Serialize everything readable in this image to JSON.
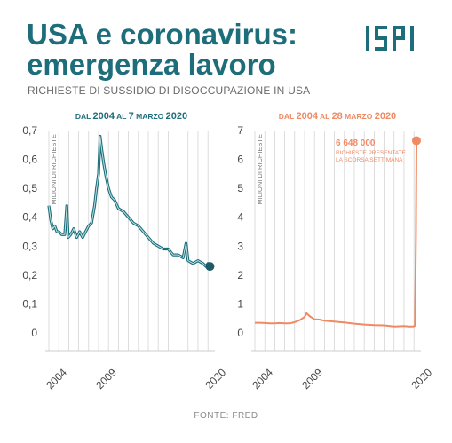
{
  "header": {
    "title_line1": "USA e coronavirus:",
    "title_line2": "emergenza lavoro",
    "subtitle": "RICHIESTE DI SUSSIDIO DI DISOCCUPAZIONE IN USA"
  },
  "logo": {
    "text": "ISPI"
  },
  "source": "FONTE: FRED",
  "colors": {
    "title": "#1d6e7a",
    "left_line": "#1d6e7a",
    "right_line": "#f08a63",
    "grid": "#cfcfcf"
  },
  "chart_data": [
    {
      "type": "line",
      "title_parts": [
        "DAL ",
        "2004",
        " AL ",
        "7",
        " MARZO ",
        "2020"
      ],
      "ylabel": "MILIONI DI RICHIESTE",
      "ylim": [
        0,
        0.7
      ],
      "xlim": [
        2004,
        2020.7
      ],
      "yticks": [
        0,
        0.1,
        0.2,
        0.3,
        0.4,
        0.5,
        0.6,
        0.7
      ],
      "ytick_labels": [
        "0",
        "0,1",
        "0,2",
        "0,3",
        "0,4",
        "0,5",
        "0,6",
        "0,7"
      ],
      "xticks": [
        2004,
        2009,
        2020
      ],
      "xtick_labels": [
        "2004",
        "2009",
        "2020"
      ],
      "series": [
        {
          "x": [
            2004.0,
            2004.2,
            2004.4,
            2004.6,
            2004.8,
            2005.0,
            2005.3,
            2005.6,
            2005.8,
            2005.95,
            2006.2,
            2006.5,
            2006.8,
            2007.1,
            2007.4,
            2007.7,
            2008.0,
            2008.3,
            2008.6,
            2008.8,
            2009.0,
            2009.15,
            2009.3,
            2009.5,
            2009.7,
            2010.0,
            2010.3,
            2010.6,
            2011.0,
            2011.5,
            2012.0,
            2012.5,
            2013.0,
            2013.5,
            2014.0,
            2014.5,
            2015.0,
            2015.5,
            2016.0,
            2016.5,
            2017.0,
            2017.5,
            2017.8,
            2018.0,
            2018.5,
            2019.0,
            2019.5,
            2019.8,
            2020.0,
            2020.2
          ],
          "y": [
            0.44,
            0.39,
            0.36,
            0.37,
            0.35,
            0.35,
            0.34,
            0.34,
            0.44,
            0.33,
            0.34,
            0.36,
            0.33,
            0.35,
            0.33,
            0.35,
            0.37,
            0.38,
            0.44,
            0.5,
            0.55,
            0.68,
            0.64,
            0.59,
            0.55,
            0.5,
            0.47,
            0.46,
            0.43,
            0.42,
            0.4,
            0.38,
            0.37,
            0.35,
            0.33,
            0.31,
            0.3,
            0.29,
            0.29,
            0.27,
            0.27,
            0.26,
            0.31,
            0.25,
            0.24,
            0.25,
            0.24,
            0.23,
            0.24,
            0.23
          ]
        }
      ],
      "end_marker": true
    },
    {
      "type": "line",
      "title_parts": [
        "DAL ",
        "2004",
        " AL ",
        "28",
        " MARZO ",
        "2020"
      ],
      "ylabel": "MILIONI DI RICHIESTE",
      "ylim": [
        0,
        7
      ],
      "xlim": [
        2004,
        2020.7
      ],
      "yticks": [
        0,
        1,
        2,
        3,
        4,
        5,
        6,
        7
      ],
      "ytick_labels": [
        "0",
        "1",
        "2",
        "3",
        "4",
        "5",
        "6",
        "7"
      ],
      "xticks": [
        2004,
        2009,
        2020
      ],
      "xtick_labels": [
        "2004",
        "2009",
        "2020"
      ],
      "series": [
        {
          "x": [
            2004.0,
            2004.5,
            2005.0,
            2005.5,
            2006.0,
            2006.5,
            2007.0,
            2007.5,
            2008.0,
            2008.5,
            2009.0,
            2009.2,
            2009.5,
            2010.0,
            2010.5,
            2011.0,
            2012.0,
            2013.0,
            2014.0,
            2015.0,
            2016.0,
            2017.0,
            2018.0,
            2019.0,
            2019.5,
            2019.9,
            2020.1,
            2020.2,
            2020.25
          ],
          "y": [
            0.35,
            0.35,
            0.34,
            0.33,
            0.33,
            0.34,
            0.33,
            0.33,
            0.37,
            0.44,
            0.55,
            0.68,
            0.58,
            0.47,
            0.46,
            0.42,
            0.39,
            0.36,
            0.32,
            0.29,
            0.27,
            0.26,
            0.22,
            0.24,
            0.22,
            0.22,
            0.25,
            3.3,
            6.648
          ]
        }
      ],
      "annotation": {
        "value": "6 648 000",
        "lines": [
          "RICHIESTE PRESENTATE",
          "LA SCORSA SETTIMANA"
        ]
      },
      "end_marker": true
    }
  ]
}
